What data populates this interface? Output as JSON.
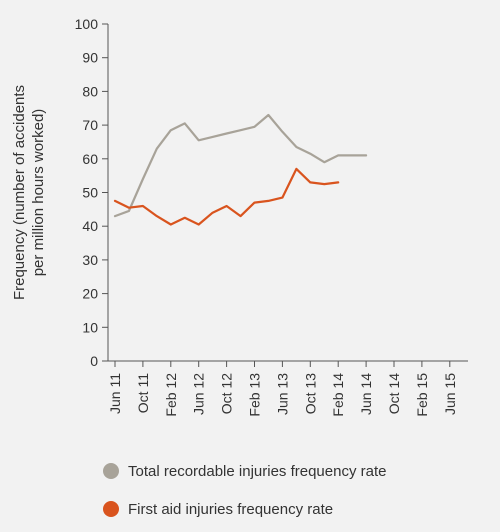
{
  "chart_data": {
    "type": "line",
    "title": "",
    "xlabel": "",
    "ylabel": "Frequency (number of accidents per million hours worked)",
    "ylabel_lines": [
      "Frequency (number of accidents",
      "per million hours worked)"
    ],
    "ylim": [
      0,
      100
    ],
    "yticks": [
      0,
      10,
      20,
      30,
      40,
      50,
      60,
      70,
      80,
      90,
      100
    ],
    "grid": false,
    "legend_position": "bottom-left",
    "categories": [
      "Jun 11",
      "Oct 11",
      "Feb 12",
      "Jun 12",
      "Oct 12",
      "Feb 13",
      "Jun 13",
      "Oct 13",
      "Feb 14",
      "Jun 14",
      "Oct 14",
      "Feb 15",
      "Jun 15"
    ],
    "x": [
      0,
      0.5,
      1,
      1.5,
      2,
      2.5,
      3,
      3.5,
      4,
      4.5,
      5,
      5.5,
      6,
      6.5,
      7,
      7.5,
      8,
      8.5,
      9,
      9.5,
      10,
      10.5,
      11,
      11.5,
      12
    ],
    "series": [
      {
        "name": "Total recordable injuries frequency rate",
        "color": "#a8a399",
        "values": [
          43,
          44.5,
          54,
          63,
          68.5,
          70.5,
          65.5,
          66.5,
          67.5,
          68.5,
          69.5,
          73,
          68,
          63.5,
          61.5,
          59,
          61,
          61,
          61,
          null,
          null,
          null,
          null,
          null,
          null
        ]
      },
      {
        "name": "First aid injuries frequency rate",
        "color": "#d9541e",
        "values": [
          47.5,
          45.5,
          46,
          43,
          40.5,
          42.5,
          40.5,
          44,
          46,
          43,
          47,
          47.5,
          48.5,
          57,
          53,
          52.5,
          53,
          null,
          null,
          null,
          null,
          null,
          null,
          null,
          null
        ]
      }
    ]
  }
}
